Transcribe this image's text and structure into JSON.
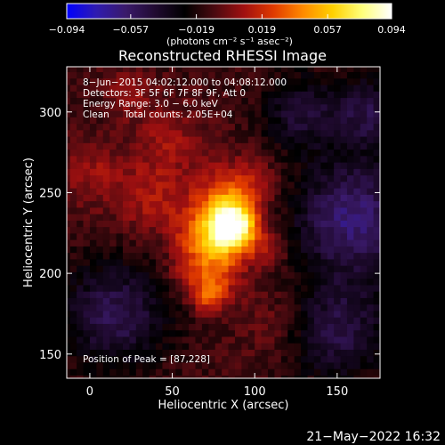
{
  "chart_data": {
    "type": "heatmap",
    "title": "Reconstructed RHESSI Image",
    "xlabel": "Heliocentric X (arcsec)",
    "ylabel": "Heliocentric Y (arcsec)",
    "xlim": [
      -14,
      176
    ],
    "ylim": [
      135,
      328
    ],
    "x_ticks": [
      0,
      50,
      100,
      150
    ],
    "y_ticks": [
      150,
      200,
      250,
      300
    ],
    "colorbar": {
      "range": [
        -0.094,
        0.094
      ],
      "tick_values": [
        -0.094,
        -0.057,
        -0.019,
        0.019,
        0.057,
        0.094
      ],
      "tick_labels": [
        "−0.094",
        "−0.057",
        "−0.019",
        "0.019",
        "0.057",
        "0.094"
      ],
      "units_label": "(photons cm⁻² s⁻¹ asec⁻²)",
      "colormap": [
        "#0000ff",
        "#2f1bb0",
        "#3a1a6a",
        "#200a30",
        "#000000",
        "#4a0a10",
        "#a01010",
        "#e03a00",
        "#ff8a00",
        "#ffd000",
        "#ffff7a",
        "#ffffff"
      ]
    },
    "annotations": [
      "8−Jun−2015 04:02:12.000 to 04:08:12.000",
      "Detectors: 3F 5F 6F 7F 8F 9F, Att 0",
      "Energy Range: 3.0 − 6.0 keV",
      "Clean     Total counts: 2.05E+04"
    ],
    "peak_label": "Position of Peak = [87,228]",
    "peak": [
      87,
      228
    ],
    "peak_value": 0.094,
    "bright_blobs": [
      {
        "x": 87,
        "y": 228,
        "peak": 0.094,
        "sigma": 10
      },
      {
        "x": 82,
        "y": 243,
        "peak": 0.045,
        "sigma": 14
      },
      {
        "x": 68,
        "y": 222,
        "peak": 0.04,
        "sigma": 12
      },
      {
        "x": 78,
        "y": 202,
        "peak": 0.035,
        "sigma": 11
      },
      {
        "x": 72,
        "y": 186,
        "peak": 0.04,
        "sigma": 7
      },
      {
        "x": 38,
        "y": 246,
        "peak": 0.022,
        "sigma": 15
      },
      {
        "x": 48,
        "y": 282,
        "peak": 0.018,
        "sigma": 16
      },
      {
        "x": 2,
        "y": 262,
        "peak": 0.018,
        "sigma": 14
      },
      {
        "x": 98,
        "y": 258,
        "peak": 0.015,
        "sigma": 12
      },
      {
        "x": 112,
        "y": 170,
        "peak": 0.012,
        "sigma": 16
      },
      {
        "x": 24,
        "y": 312,
        "peak": 0.016,
        "sigma": 10
      },
      {
        "x": 108,
        "y": 214,
        "peak": 0.02,
        "sigma": 8
      },
      {
        "x": 58,
        "y": 200,
        "peak": 0.015,
        "sigma": 9
      }
    ],
    "dark_regions": [
      {
        "x": 160,
        "y": 235,
        "value": -0.05,
        "sigma": 25
      },
      {
        "x": 150,
        "y": 165,
        "value": -0.035,
        "sigma": 22
      },
      {
        "x": 15,
        "y": 175,
        "value": -0.04,
        "sigma": 22
      },
      {
        "x": 128,
        "y": 300,
        "value": -0.03,
        "sigma": 16
      },
      {
        "x": 170,
        "y": 300,
        "value": -0.035,
        "sigma": 15
      }
    ]
  },
  "footer": {
    "timestamp": "21−May−2022 16:32"
  }
}
